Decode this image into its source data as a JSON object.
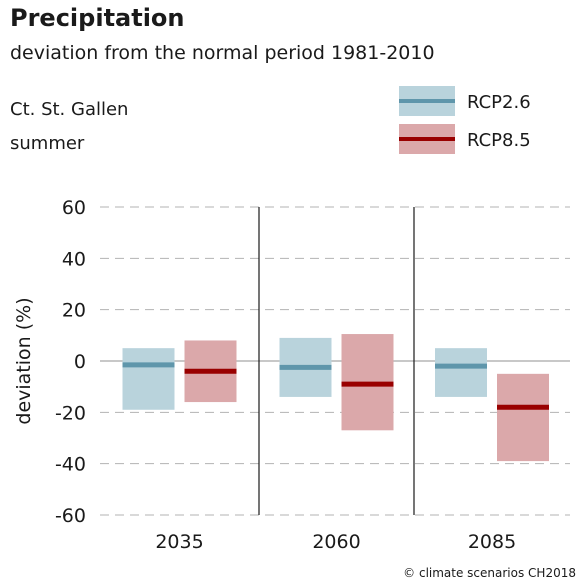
{
  "chart_data": {
    "type": "bar",
    "title": "Precipitation",
    "subtitle": "deviation from the normal period 1981-2010",
    "region": "Ct. St. Gallen",
    "season": "summer",
    "ylabel": "deviation (%)",
    "ylim": [
      -60,
      60
    ],
    "yticks": [
      60,
      40,
      20,
      0,
      -20,
      -40,
      -60
    ],
    "grid": "horizontal dashed",
    "legend_position": "top-right",
    "categories": [
      "2035",
      "2060",
      "2085"
    ],
    "series": [
      {
        "name": "RCP2.6",
        "range_color": "#b9d3dc",
        "median_color": "#5f96ab",
        "low": [
          -19,
          -14,
          -14
        ],
        "median": [
          -1.5,
          -2.5,
          -2
        ],
        "high": [
          5,
          9,
          5
        ]
      },
      {
        "name": "RCP8.5",
        "range_color": "#dba8aa",
        "median_color": "#990000",
        "low": [
          -16,
          -27,
          -39
        ],
        "median": [
          -4,
          -9,
          -18
        ],
        "high": [
          8,
          10.5,
          -5
        ]
      }
    ]
  },
  "credit": "© climate scenarios CH2018"
}
